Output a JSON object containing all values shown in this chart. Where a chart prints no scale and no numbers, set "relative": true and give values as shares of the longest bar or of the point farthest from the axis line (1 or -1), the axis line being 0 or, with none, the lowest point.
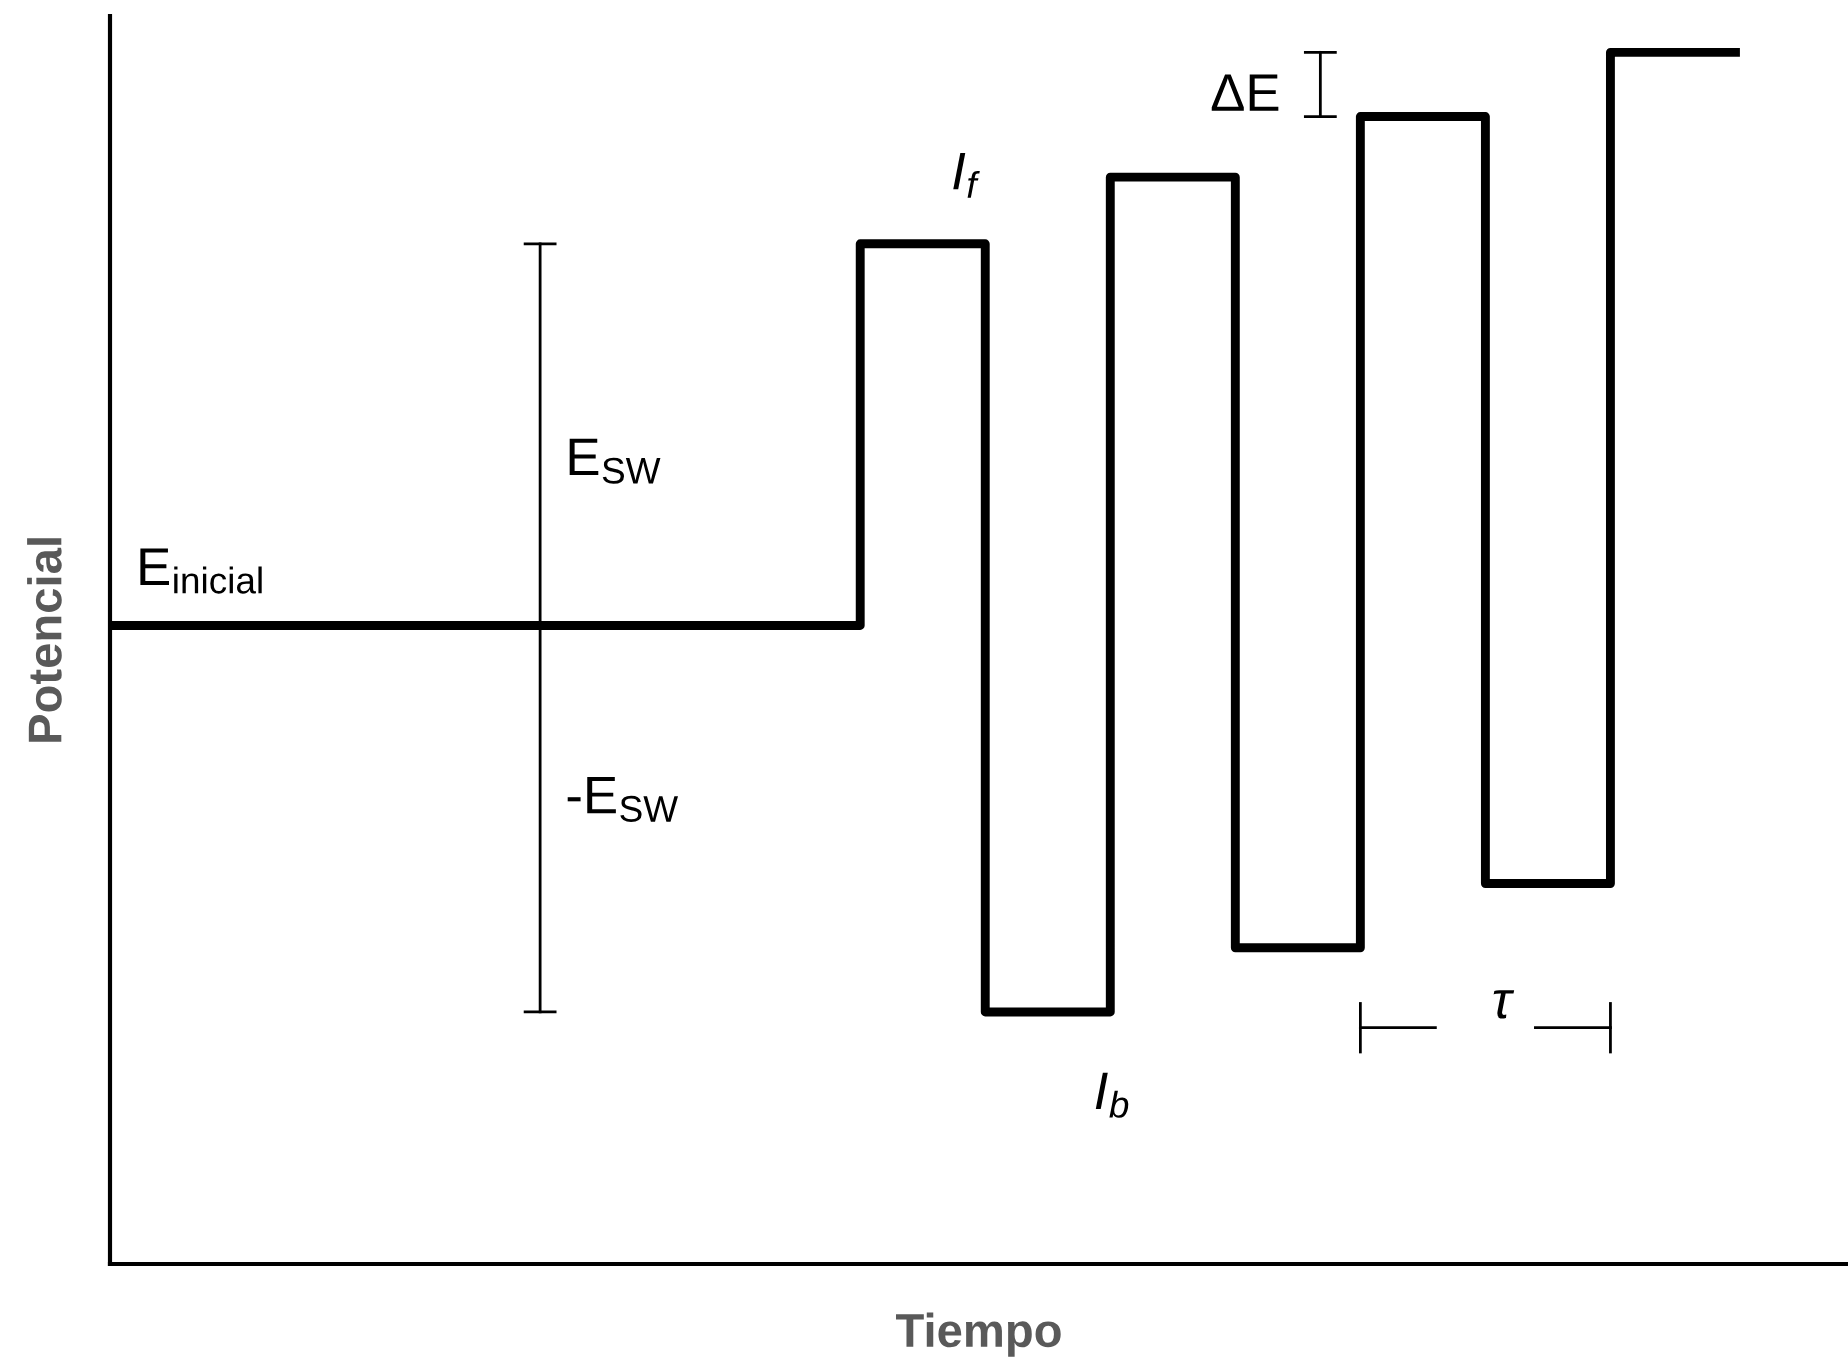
{
  "chart_data": {
    "type": "step",
    "relative": true,
    "xlabel": "Tiempo",
    "ylabel": "Potencial",
    "categories": [
      null,
      null,
      null,
      null,
      null,
      null,
      null,
      null,
      null,
      null,
      null,
      null,
      null,
      null
    ],
    "series": [
      {
        "color": "#000000",
        "values": [
          0.527,
          0.527,
          0.527,
          0.527,
          0.527,
          0.527,
          0.842,
          0.208,
          0.897,
          0.261,
          0.947,
          0.314,
          1.0,
          1.0
        ]
      }
    ],
    "annotations": [
      "E$_{inicial}$",
      "E$_{SW}$",
      "-E$_{SW}$",
      "I$_{f}$",
      "I$_{b}$",
      "ΔE",
      "τ"
    ],
    "grid": false,
    "marker": "none",
    "line_style": "solid"
  }
}
